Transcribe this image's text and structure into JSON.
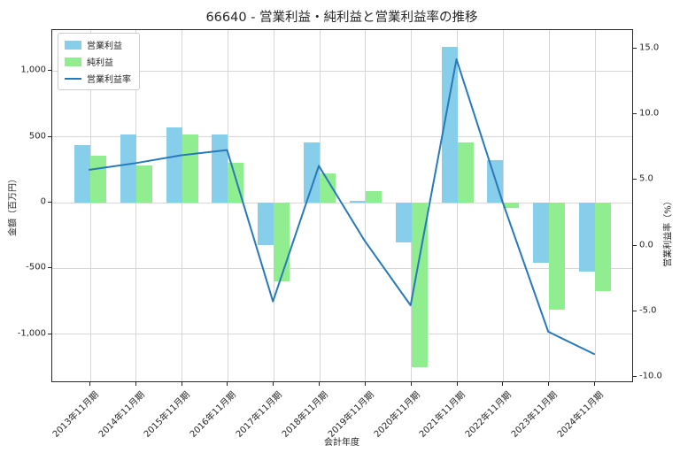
{
  "title": "66640 - 営業利益・純利益と営業利益率の推移",
  "chart_data": {
    "type": "bar",
    "subtype": "grouped-bars-with-line-overlay",
    "title": "66640 - 営業利益・純利益と営業利益率の推移",
    "xlabel": "会計年度",
    "ylabel_left": "金額（百万円）",
    "ylabel_right": "営業利益率（%）",
    "grid": true,
    "legend_position": "upper left",
    "categories": [
      "2013年11月期",
      "2014年11月期",
      "2015年11月期",
      "2016年11月期",
      "2017年11月期",
      "2018年11月期",
      "2019年11月期",
      "2020年11月期",
      "2021年11月期",
      "2022年11月期",
      "2023年11月期",
      "2024年11月期"
    ],
    "series": [
      {
        "name": "営業利益",
        "type": "bar",
        "axis": "left",
        "color": "#87ceeb",
        "values": [
          440,
          515,
          570,
          520,
          -320,
          455,
          15,
          -305,
          1180,
          325,
          -455,
          -525
        ]
      },
      {
        "name": "純利益",
        "type": "bar",
        "axis": "left",
        "color": "#90ee90",
        "values": [
          355,
          285,
          515,
          300,
          -600,
          220,
          90,
          -1250,
          455,
          -40,
          -810,
          -670
        ]
      },
      {
        "name": "営業利益率",
        "type": "line",
        "axis": "right",
        "color": "#2879b9",
        "values": [
          5.7,
          6.2,
          6.8,
          7.2,
          -4.3,
          6.0,
          0.3,
          -4.6,
          14.1,
          3.3,
          -6.6,
          -8.3
        ]
      }
    ],
    "left_axis": {
      "lim": [
        -1371,
        1311
      ],
      "ticks": [
        1000,
        500,
        0,
        -500,
        -1000
      ],
      "tick_labels": [
        "1,000",
        "500",
        "0",
        "-500",
        "-1,000"
      ]
    },
    "right_axis": {
      "lim": [
        -10.44,
        16.38
      ],
      "ticks": [
        15.0,
        10.0,
        5.0,
        0.0,
        -5.0,
        -10.0
      ],
      "tick_labels": [
        "15.0",
        "10.0",
        "5.0",
        "0.0",
        "-5.0",
        "-10.0"
      ]
    }
  }
}
